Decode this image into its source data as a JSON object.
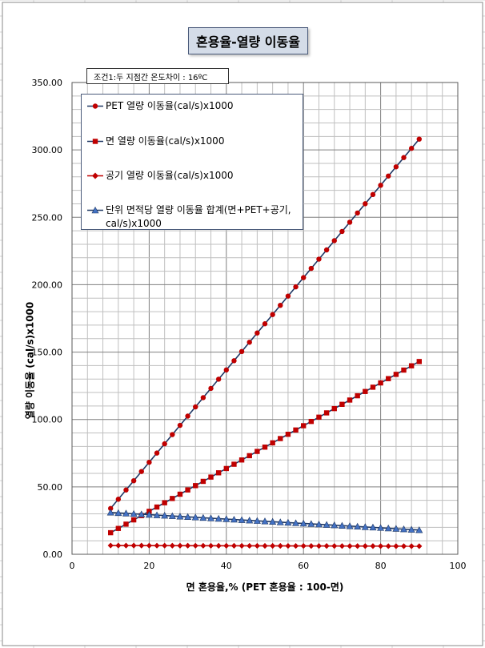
{
  "title": "혼용율-열량 이동율",
  "condition_note": "조건1:두 지점간 온도차이 : 16ºC",
  "chart_data": {
    "type": "line",
    "xlabel": "면 혼용율,% (PET 혼용율 : 100-면)",
    "ylabel": "열량 이동율 (cal/s)x1000",
    "xlim": [
      0,
      100
    ],
    "ylim": [
      0,
      350
    ],
    "x_ticks": [
      "0",
      "20",
      "40",
      "60",
      "80",
      "100"
    ],
    "y_ticks": [
      "0.00",
      "50.00",
      "100.00",
      "150.00",
      "200.00",
      "250.00",
      "300.00",
      "350.00"
    ],
    "grid": true,
    "legend_position": "top-left",
    "x": [
      10,
      90
    ],
    "series": [
      {
        "name": "PET 열량 이동율(cal/s)x1000",
        "color": "#c00000",
        "line_color": "#1f3864",
        "marker": "circle",
        "values": [
          34,
          308
        ]
      },
      {
        "name": "면 열량 이동율(cal/s)x1000",
        "color": "#c00000",
        "line_color": "#1f3864",
        "marker": "square",
        "values": [
          16,
          143
        ]
      },
      {
        "name": "공기 열량 이동율(cal/s)x1000",
        "color": "#c00000",
        "line_color": "#c00000",
        "marker": "diamond",
        "values": [
          6.5,
          6
        ]
      },
      {
        "name": "단위 면적당 열량 이동율 합계(면+PET+공기, cal/s)x1000",
        "color": "#4472c4",
        "line_color": "#1f3864",
        "marker": "triangle",
        "values": [
          31,
          18
        ]
      }
    ]
  }
}
